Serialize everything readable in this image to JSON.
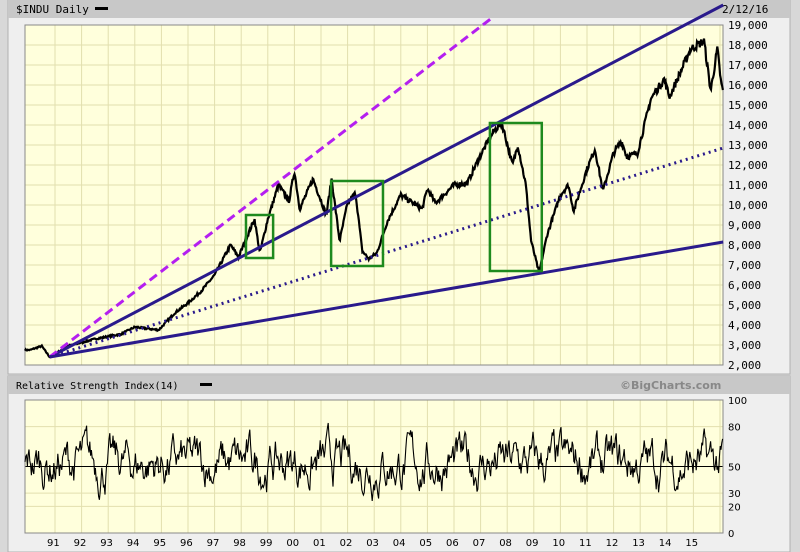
{
  "header": {
    "title": "$INDU Daily",
    "date": "2/12/16"
  },
  "rsi_header": {
    "title": "Relative Strength Index(14)",
    "credit": "©BigCharts.com"
  },
  "colors": {
    "plot_bg": "#ffffdc",
    "grid": "#e2dfae",
    "price": "#000000",
    "trend": "#2a1a8c",
    "dashed": "#b41ff0",
    "box": "#1e8a1e"
  },
  "chart_data": [
    {
      "type": "line",
      "title": "$INDU Daily",
      "ylim": [
        2000,
        19000
      ],
      "y_ticks": [
        "2,000",
        "3,000",
        "4,000",
        "5,000",
        "6,000",
        "7,000",
        "8,000",
        "9,000",
        "10,000",
        "11,000",
        "12,000",
        "13,000",
        "14,000",
        "15,000",
        "16,000",
        "17,000",
        "18,000",
        "19,000"
      ],
      "x_ticks": [
        "91",
        "92",
        "93",
        "94",
        "95",
        "96",
        "97",
        "98",
        "99",
        "00",
        "01",
        "02",
        "03",
        "04",
        "05",
        "06",
        "07",
        "08",
        "09",
        "10",
        "11",
        "12",
        "13",
        "14",
        "15"
      ],
      "xlim": [
        1990.06,
        2016.12
      ],
      "grid": true,
      "series_points": [
        [
          1990.06,
          2750
        ],
        [
          1990.5,
          2950
        ],
        [
          1990.8,
          2400
        ],
        [
          1991.5,
          2950
        ],
        [
          1992.5,
          3300
        ],
        [
          1993.5,
          3550
        ],
        [
          1994.0,
          3900
        ],
        [
          1994.9,
          3750
        ],
        [
          1995.5,
          4600
        ],
        [
          1996.0,
          5100
        ],
        [
          1996.5,
          5700
        ],
        [
          1997.0,
          6500
        ],
        [
          1997.6,
          8000
        ],
        [
          1997.9,
          7400
        ],
        [
          1998.5,
          9300
        ],
        [
          1998.7,
          7600
        ],
        [
          1999.0,
          9300
        ],
        [
          1999.4,
          11000
        ],
        [
          1999.8,
          10200
        ],
        [
          2000.0,
          11700
        ],
        [
          2000.2,
          9800
        ],
        [
          2000.7,
          11300
        ],
        [
          2001.2,
          9500
        ],
        [
          2001.4,
          11300
        ],
        [
          2001.7,
          8200
        ],
        [
          2002.0,
          10100
        ],
        [
          2002.3,
          10600
        ],
        [
          2002.55,
          7700
        ],
        [
          2002.8,
          7300
        ],
        [
          2003.1,
          7600
        ],
        [
          2003.5,
          9200
        ],
        [
          2004.0,
          10500
        ],
        [
          2004.8,
          9800
        ],
        [
          2005.0,
          10800
        ],
        [
          2005.3,
          10100
        ],
        [
          2006.0,
          11000
        ],
        [
          2006.5,
          11100
        ],
        [
          2007.0,
          12500
        ],
        [
          2007.5,
          13700
        ],
        [
          2007.8,
          14100
        ],
        [
          2008.2,
          12000
        ],
        [
          2008.4,
          13000
        ],
        [
          2008.7,
          11000
        ],
        [
          2008.9,
          8200
        ],
        [
          2009.2,
          6600
        ],
        [
          2009.5,
          8500
        ],
        [
          2010.0,
          10500
        ],
        [
          2010.3,
          11000
        ],
        [
          2010.5,
          9700
        ],
        [
          2011.0,
          11800
        ],
        [
          2011.3,
          12800
        ],
        [
          2011.6,
          10700
        ],
        [
          2012.0,
          12600
        ],
        [
          2012.3,
          13200
        ],
        [
          2012.5,
          12400
        ],
        [
          2012.9,
          12600
        ],
        [
          2013.4,
          15300
        ],
        [
          2013.9,
          16300
        ],
        [
          2014.1,
          15400
        ],
        [
          2014.9,
          17800
        ],
        [
          2015.4,
          18200
        ],
        [
          2015.65,
          15700
        ],
        [
          2015.9,
          17800
        ],
        [
          2016.05,
          16000
        ],
        [
          2016.12,
          15700
        ]
      ],
      "trendlines": [
        {
          "style": "solid",
          "color": "trend",
          "from": [
            1990.8,
            2400
          ],
          "to": [
            2016.12,
            20000
          ]
        },
        {
          "style": "dashed",
          "color": "dashed",
          "from": [
            1990.8,
            2400
          ],
          "to": [
            2007.47,
            19400
          ]
        },
        {
          "style": "dotted",
          "color": "trend",
          "from": [
            1990.8,
            2400
          ],
          "to": [
            2016.12,
            12850
          ]
        },
        {
          "style": "solid",
          "color": "trend",
          "from": [
            1990.8,
            2400
          ],
          "to": [
            2016.12,
            8150
          ]
        }
      ],
      "boxes": [
        {
          "x": [
            1998.18,
            1999.2
          ],
          "y": [
            7350,
            9500
          ]
        },
        {
          "x": [
            2001.38,
            2003.33
          ],
          "y": [
            6950,
            11200
          ]
        },
        {
          "x": [
            2007.35,
            2009.3
          ],
          "y": [
            6700,
            14100
          ]
        }
      ]
    },
    {
      "type": "line",
      "title": "Relative Strength Index(14)",
      "ylim": [
        0,
        100
      ],
      "y_ticks": [
        "0",
        "20",
        "30",
        "50",
        "80",
        "100"
      ],
      "reference_line": 50,
      "typical_range": [
        20,
        85
      ]
    }
  ]
}
